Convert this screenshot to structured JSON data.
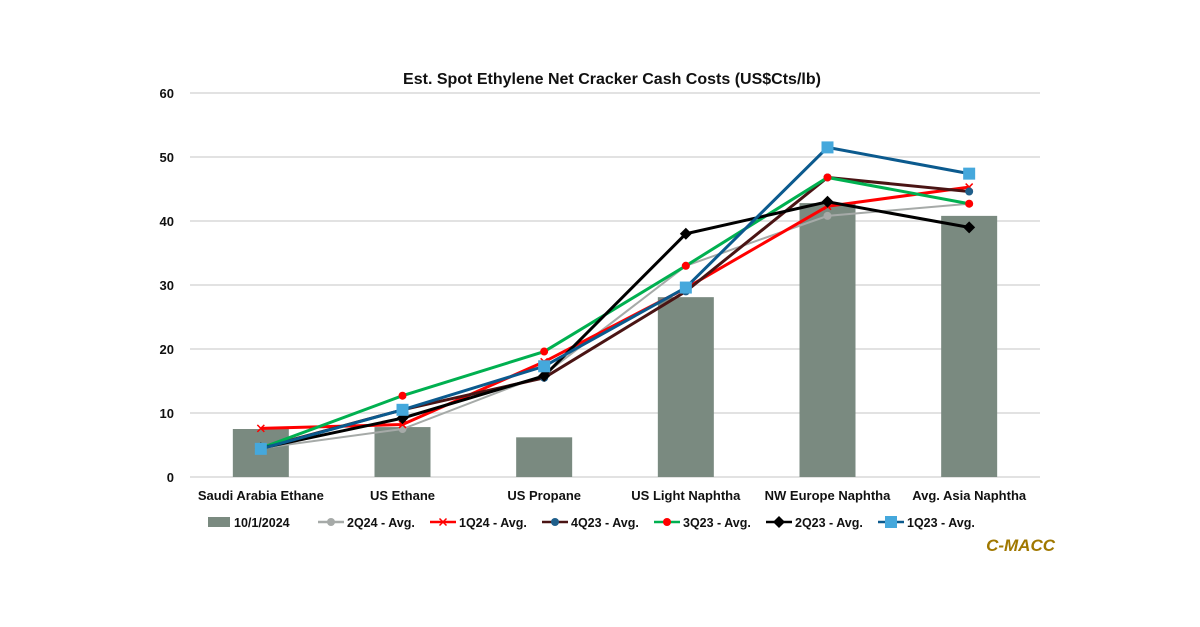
{
  "chart_data": {
    "type": "bar+line",
    "title": "Est. Spot Ethylene Net Cracker Cash Costs (US$Cts/lb)",
    "xlabel": "",
    "ylabel": "",
    "ylim": [
      0,
      60
    ],
    "yticks": [
      0,
      10,
      20,
      30,
      40,
      50,
      60
    ],
    "grid": true,
    "legend": "bottom",
    "categories": [
      "Saudi Arabia Ethane",
      "US Ethane",
      "US Propane",
      "US Light Naphtha",
      "NW Europe Naphtha",
      "Avg. Asia Naphtha"
    ],
    "bars": {
      "name": "10/1/2024",
      "color": "#7a8a80",
      "values": [
        7.5,
        7.8,
        6.2,
        28.1,
        42.8,
        40.8
      ]
    },
    "series": [
      {
        "name": "2Q24 - Avg.",
        "color": "#a6aaa8",
        "marker": "circle",
        "marker_color": "#a6aaa8",
        "values": [
          4.5,
          7.5,
          16.0,
          33.0,
          40.8,
          42.7
        ]
      },
      {
        "name": "1Q24 - Avg.",
        "color": "#ff0000",
        "marker": "x",
        "marker_color": "#ff0000",
        "values": [
          7.6,
          8.2,
          18.0,
          29.5,
          42.3,
          45.3
        ]
      },
      {
        "name": "4Q23 - Avg.",
        "color": "#4a1414",
        "marker": "circle",
        "marker_color": "#1f5f8b",
        "values": [
          4.5,
          10.5,
          15.5,
          29.0,
          46.8,
          44.6
        ]
      },
      {
        "name": "3Q23 - Avg.",
        "color": "#00b050",
        "marker": "circle",
        "marker_color": "#ff0000",
        "values": [
          4.5,
          12.7,
          19.6,
          33.0,
          46.8,
          42.7
        ]
      },
      {
        "name": "2Q23 - Avg.",
        "color": "#000000",
        "marker": "diamond",
        "marker_color": "#000000",
        "values": [
          4.5,
          9.2,
          15.8,
          38.0,
          43.0,
          39.0
        ]
      },
      {
        "name": "1Q23 - Avg.",
        "color": "#0b5a8e",
        "marker": "square",
        "marker_color": "#45a8dc",
        "values": [
          4.4,
          10.5,
          17.3,
          29.6,
          51.5,
          47.4
        ]
      }
    ]
  },
  "watermark": "C-MACC"
}
